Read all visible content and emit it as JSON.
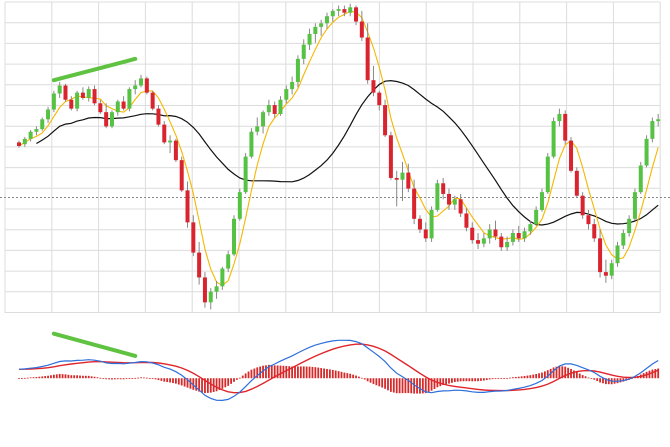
{
  "colors": {
    "background": "#ffffff",
    "grid": "#dcdcdc",
    "up": "#55c243",
    "down": "#d9232e",
    "wick": "#888888",
    "ma_fast": "#f5b700",
    "ma_slow": "#111111",
    "divergence_marker": "#5fc240",
    "macd_line": "#2f6fdb",
    "signal_line": "#e0252b",
    "histogram": "#d42a2a",
    "reference_dotted": "#888888"
  },
  "chart_data": [
    {
      "type": "candlestick",
      "series": [
        {
          "name": "",
          "ohlc": [
            [
              62,
              64,
              56,
              58
            ],
            [
              60,
              68,
              57,
              66
            ],
            [
              66,
              76,
              63,
              74
            ],
            [
              74,
              80,
              70,
              77
            ],
            [
              77,
              90,
              75,
              88
            ],
            [
              88,
              102,
              84,
              99
            ],
            [
              99,
              120,
              96,
              117
            ],
            [
              117,
              130,
              112,
              126
            ],
            [
              126,
              128,
              108,
              110
            ],
            [
              110,
              114,
              98,
              100
            ],
            [
              100,
              120,
              97,
              118
            ],
            [
              118,
              124,
              110,
              112
            ],
            [
              112,
              125,
              108,
              122
            ],
            [
              122,
              126,
              104,
              106
            ],
            [
              106,
              110,
              94,
              96
            ],
            [
              96,
              106,
              78,
              80
            ],
            [
              80,
              98,
              78,
              96
            ],
            [
              96,
              110,
              92,
              108
            ],
            [
              108,
              114,
              98,
              100
            ],
            [
              100,
              124,
              97,
              122
            ],
            [
              122,
              132,
              116,
              126
            ],
            [
              126,
              138,
              124,
              134
            ],
            [
              134,
              136,
              116,
              118
            ],
            [
              118,
              120,
              98,
              100
            ],
            [
              100,
              104,
              80,
              82
            ],
            [
              82,
              86,
              60,
              62
            ],
            [
              62,
              70,
              50,
              64
            ],
            [
              64,
              66,
              40,
              42
            ],
            [
              42,
              46,
              6,
              8
            ],
            [
              8,
              18,
              -34,
              -28
            ],
            [
              -28,
              -20,
              -66,
              -62
            ],
            [
              -62,
              -50,
              -98,
              -90
            ],
            [
              -90,
              -84,
              -124,
              -118
            ],
            [
              -118,
              -102,
              -126,
              -106
            ],
            [
              -106,
              -94,
              -114,
              -100
            ],
            [
              -100,
              -78,
              -104,
              -80
            ],
            [
              -80,
              -60,
              -84,
              -64
            ],
            [
              -64,
              -20,
              -66,
              -24
            ],
            [
              -24,
              10,
              -26,
              6
            ],
            [
              6,
              50,
              4,
              46
            ],
            [
              46,
              78,
              44,
              74
            ],
            [
              74,
              90,
              70,
              80
            ],
            [
              80,
              98,
              72,
              96
            ],
            [
              96,
              110,
              92,
              104
            ],
            [
              104,
              108,
              90,
              94
            ],
            [
              94,
              114,
              92,
              110
            ],
            [
              110,
              126,
              106,
              122
            ],
            [
              122,
              136,
              116,
              130
            ],
            [
              130,
              160,
              124,
              156
            ],
            [
              156,
              178,
              150,
              172
            ],
            [
              172,
              190,
              166,
              184
            ],
            [
              184,
              196,
              174,
              192
            ],
            [
              192,
              200,
              182,
              196
            ],
            [
              196,
              208,
              190,
              204
            ],
            [
              204,
              212,
              198,
              210
            ],
            [
              210,
              216,
              204,
              212
            ],
            [
              212,
              216,
              204,
              208
            ],
            [
              208,
              218,
              204,
              214
            ],
            [
              214,
              216,
              194,
              198
            ],
            [
              198,
              210,
              176,
              180
            ],
            [
              180,
              196,
              128,
              132
            ],
            [
              132,
              148,
              114,
              118
            ],
            [
              118,
              120,
              98,
              104
            ],
            [
              104,
              110,
              68,
              70
            ],
            [
              70,
              74,
              20,
              22
            ],
            [
              22,
              30,
              -10,
              20
            ],
            [
              20,
              40,
              -4,
              28
            ],
            [
              28,
              38,
              6,
              10
            ],
            [
              10,
              20,
              -30,
              -24
            ],
            [
              -24,
              -20,
              -40,
              -36
            ],
            [
              -36,
              -28,
              -50,
              -46
            ],
            [
              -46,
              -10,
              -50,
              -14
            ],
            [
              -14,
              20,
              -16,
              16
            ],
            [
              16,
              22,
              -2,
              4
            ],
            [
              4,
              10,
              -14,
              -8
            ],
            [
              -8,
              2,
              -14,
              -2
            ],
            [
              -2,
              4,
              -22,
              -18
            ],
            [
              -18,
              -12,
              -38,
              -34
            ],
            [
              -34,
              -28,
              -52,
              -48
            ],
            [
              -48,
              -40,
              -58,
              -52
            ],
            [
              -52,
              -40,
              -56,
              -46
            ],
            [
              -46,
              -30,
              -52,
              -36
            ],
            [
              -36,
              -26,
              -48,
              -44
            ],
            [
              -44,
              -40,
              -60,
              -56
            ],
            [
              -56,
              -44,
              -60,
              -50
            ],
            [
              -50,
              -36,
              -54,
              -40
            ],
            [
              -40,
              -32,
              -50,
              -46
            ],
            [
              -46,
              -34,
              -50,
              -38
            ],
            [
              -38,
              -26,
              -42,
              -30
            ],
            [
              -30,
              -10,
              -32,
              -14
            ],
            [
              -14,
              10,
              -16,
              6
            ],
            [
              6,
              50,
              4,
              46
            ],
            [
              46,
              90,
              44,
              86
            ],
            [
              86,
              100,
              80,
              94
            ],
            [
              94,
              98,
              60,
              64
            ],
            [
              64,
              68,
              28,
              30
            ],
            [
              30,
              34,
              0,
              2
            ],
            [
              2,
              6,
              -24,
              -20
            ],
            [
              -20,
              -14,
              -36,
              -30
            ],
            [
              -30,
              -24,
              -50,
              -46
            ],
            [
              -46,
              -36,
              -90,
              -84
            ],
            [
              -84,
              -70,
              -96,
              -88
            ],
            [
              -88,
              -70,
              -92,
              -74
            ],
            [
              -74,
              -50,
              -78,
              -54
            ],
            [
              -54,
              -36,
              -58,
              -40
            ],
            [
              -40,
              -20,
              -44,
              -24
            ],
            [
              -24,
              10,
              -26,
              6
            ],
            [
              6,
              40,
              4,
              36
            ],
            [
              36,
              70,
              34,
              66
            ],
            [
              66,
              90,
              62,
              86
            ],
            [
              86,
              94,
              80,
              88
            ]
          ]
        },
        {
          "name": "",
          "kind": "ma_fast"
        },
        {
          "name": "",
          "kind": "ma_slow"
        }
      ],
      "reference_line": 0,
      "ylim": [
        -130,
        220
      ],
      "grid": true,
      "divergence_segment": {
        "from_bar": 6,
        "to_bar": 20,
        "y_from": 132,
        "y_to": 156
      }
    },
    {
      "type": "macd",
      "series": [
        {
          "name": "",
          "kind": "macd_line"
        },
        {
          "name": "",
          "kind": "signal_line"
        },
        {
          "name": "",
          "kind": "histogram"
        }
      ],
      "ylim": [
        -60,
        55
      ],
      "grid": false,
      "divergence_segment": {
        "from_bar": 6,
        "to_bar": 20,
        "y_from": 40,
        "y_to": 20
      }
    }
  ]
}
